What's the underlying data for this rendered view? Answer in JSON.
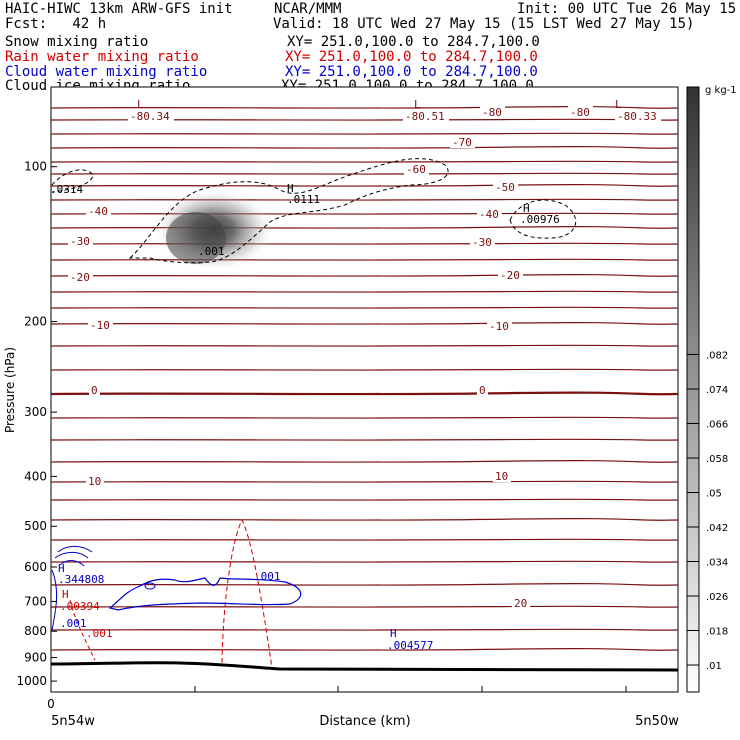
{
  "header": {
    "model_title": "HAIC-HIWC 13km ARW-GFS init",
    "org": "NCAR/MMM",
    "init_time": "Init: 00 UTC Tue 26 May 15",
    "forecast": "Fcst:   42 h",
    "valid_time": "Valid: 18 UTC Wed 27 May 15 (15 LST Wed 27 May 15)",
    "fields": [
      {
        "name": "Snow mixing ratio",
        "xsect": "XY= 251.0,100.0 to 284.7,100.0",
        "color": "#000000"
      },
      {
        "name": "Rain water mixing ratio",
        "xsect": "XY= 251.0,100.0 to 284.7,100.0",
        "color": "#d00000"
      },
      {
        "name": "Cloud water mixing ratio",
        "xsect": "XY= 251.0,100.0 to 284.7,100.0",
        "color": "#0000cc"
      },
      {
        "name": "Cloud ice mixing ratio",
        "xsect": "XY= 251.0,100.0 to 284.7,100.0",
        "color": "#000000"
      }
    ]
  },
  "chart_data": {
    "type": "contour",
    "xlabel": "Distance (km)",
    "ylabel": "Pressure (hPa)",
    "x_ticks": [
      "0"
    ],
    "x_endpoints": {
      "left": "5n54w",
      "right": "5n50w"
    },
    "y_ticks": [
      100,
      200,
      300,
      400,
      500,
      600,
      700,
      800,
      900,
      1000
    ],
    "y_scale": "log",
    "ylim": [
      1050,
      70
    ],
    "colorbar": {
      "unit": "g kg-1",
      "levels": [
        ".01",
        ".018",
        ".026",
        ".034",
        ".042",
        ".05",
        ".058",
        ".066",
        ".074",
        ".082"
      ]
    },
    "temperature_labels": [
      "-80.34",
      "-80.51",
      "-80.33",
      "-80",
      "-80",
      "-70",
      "-60",
      "-50",
      "-40",
      "-40",
      "-30",
      "-30",
      "-20",
      "-20",
      "-10",
      "-10",
      "0",
      "0",
      "10",
      "10",
      "20"
    ],
    "labels": {
      "L": "L",
      "H": "H",
      "snow_max": ".0111",
      "ice_max": ".00976",
      "left_edge": ".0314",
      "snow_min": ".001",
      "cloud_water_max": ".344808",
      "rain_max": ".00394",
      "cloud_water_min": ".001",
      "rain_min": ".001",
      "cloud_water_min2": ".001",
      "cloud_water_max2": ".004577"
    }
  }
}
